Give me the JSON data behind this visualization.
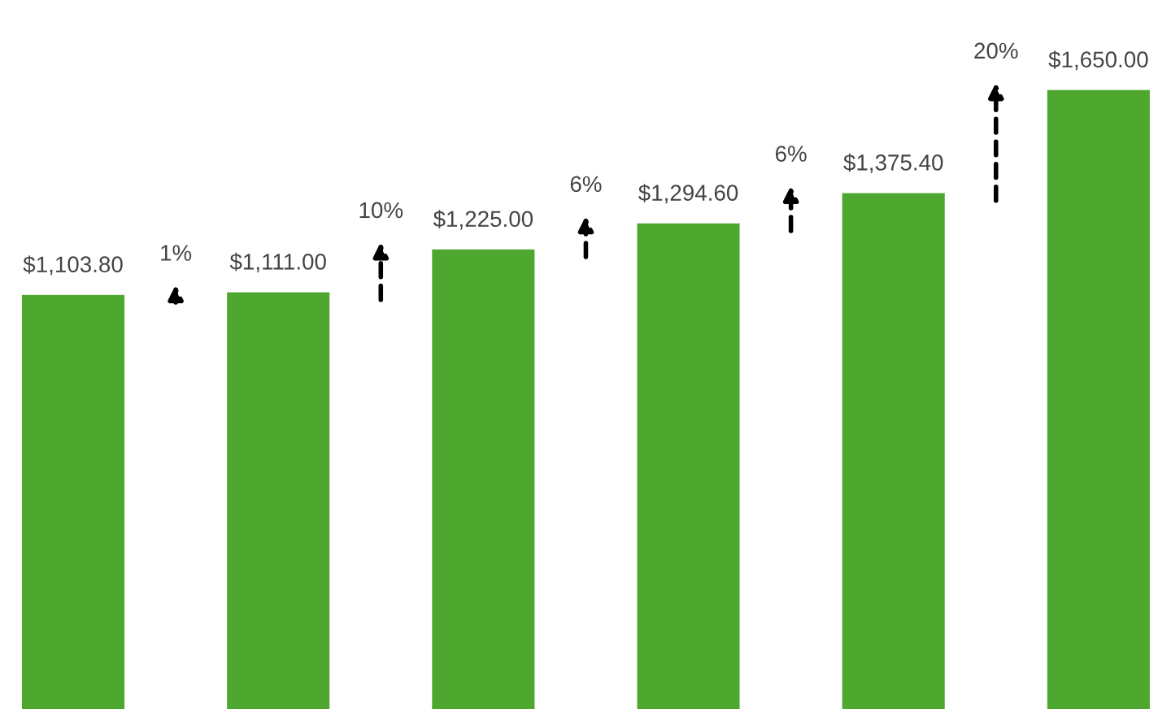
{
  "chart_data": {
    "type": "bar",
    "categories": [
      null,
      null,
      null,
      null,
      null,
      null
    ],
    "values": [
      1103.8,
      1111.0,
      1225.0,
      1294.6,
      1375.4,
      1650.0
    ],
    "value_labels": [
      "$1,103.80",
      "$1,111.00",
      "$1,225.00",
      "$1,294.60",
      "$1,375.40",
      "$1,650.00"
    ],
    "color": "#4ea72e",
    "ylim": [
      0,
      1890
    ],
    "annotations": [
      "1%",
      "10%",
      "6%",
      "6%",
      "20%"
    ],
    "grid": false
  }
}
